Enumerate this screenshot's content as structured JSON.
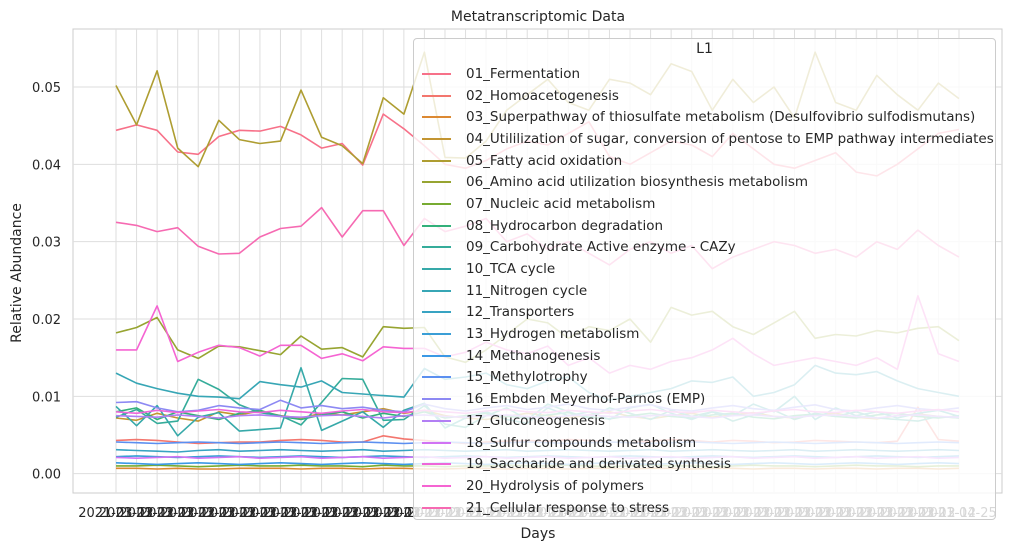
{
  "chart_data": {
    "type": "line",
    "title": "Metatranscriptomic Data",
    "xlabel": "Days",
    "ylabel": "Relative Abundance",
    "ylim": [
      -0.0025,
      0.0575
    ],
    "yticks": [
      "0.00",
      "0.01",
      "0.02",
      "0.03",
      "0.04",
      "0.05"
    ],
    "ytick_values": [
      0.0,
      0.01,
      0.02,
      0.03,
      0.04,
      0.05
    ],
    "grid": true,
    "legend_title": "L1",
    "legend_position": "upper-right",
    "x_tick_text": "2021-03-12",
    "last_x_tick_text": "2021-04-25",
    "x_count": 42,
    "series": [
      {
        "name": "01_Fermentation",
        "color": "#f77189",
        "values": [
          0.0444,
          0.0451,
          0.0444,
          0.0416,
          0.0413,
          0.0436,
          0.0444,
          0.0443,
          0.0449,
          0.0438,
          0.0421,
          0.0427,
          0.0399,
          0.0465,
          0.0446,
          0.0424,
          0.04,
          0.0395,
          0.0405,
          0.042,
          0.043,
          0.0425,
          0.044,
          0.0455,
          0.041,
          0.04,
          0.0415,
          0.043,
          0.0425,
          0.041,
          0.044,
          0.042,
          0.04,
          0.0395,
          0.0405,
          0.0415,
          0.039,
          0.0385,
          0.04,
          0.042,
          0.044,
          0.0445
        ]
      },
      {
        "name": "02_Homoacetogenesis",
        "color": "#f3766e",
        "values": [
          0.0043,
          0.0044,
          0.0043,
          0.0041,
          0.0039,
          0.004,
          0.0041,
          0.0041,
          0.0043,
          0.0044,
          0.0043,
          0.0041,
          0.0041,
          0.0049,
          0.0045,
          0.0043,
          0.0041,
          0.0039,
          0.0041,
          0.0042,
          0.0043,
          0.0042,
          0.0044,
          0.0043,
          0.0041,
          0.004,
          0.0042,
          0.0044,
          0.0043,
          0.0041,
          0.0043,
          0.0042,
          0.004,
          0.0041,
          0.0043,
          0.0042,
          0.0041,
          0.004,
          0.0042,
          0.0086,
          0.0044,
          0.0042
        ]
      },
      {
        "name": "03_Superpathway of thiosulfate metabolism (Desulfovibrio sulfodismutans)",
        "color": "#dc8932",
        "values": [
          0.0007,
          0.0007,
          0.0006,
          0.0007,
          0.0006,
          0.0006,
          0.0007,
          0.0007,
          0.0007,
          0.0006,
          0.0007,
          0.0007,
          0.0006,
          0.0007,
          0.0007,
          0.0006,
          0.0006,
          0.0007,
          0.0007,
          0.0006,
          0.0007,
          0.0007,
          0.0006,
          0.0007,
          0.0007,
          0.0006,
          0.0007,
          0.0007,
          0.0006,
          0.0007,
          0.0007,
          0.0006,
          0.0007,
          0.0007,
          0.0006,
          0.0007,
          0.0007,
          0.0006,
          0.0007,
          0.0007,
          0.0006,
          0.0007
        ]
      },
      {
        "name": "04_Utililization of sugar, conversion of pentose to EMP pathway intermediates",
        "color": "#c39532",
        "values": [
          0.0072,
          0.0069,
          0.0078,
          0.0072,
          0.0068,
          0.008,
          0.0076,
          0.0081,
          0.0075,
          0.0072,
          0.0078,
          0.0076,
          0.008,
          0.0084,
          0.0078,
          0.0082,
          0.0075,
          0.0072,
          0.007,
          0.0074,
          0.0078,
          0.0075,
          0.0072,
          0.0076,
          0.008,
          0.0074,
          0.0071,
          0.0075,
          0.0078,
          0.0073,
          0.0076,
          0.0079,
          0.0074,
          0.0072,
          0.0076,
          0.0078,
          0.0073,
          0.0071,
          0.0075,
          0.0077,
          0.0074,
          0.0072
        ]
      },
      {
        "name": "05_Fatty acid oxidation",
        "color": "#ae9d31",
        "values": [
          0.0502,
          0.0451,
          0.0521,
          0.0421,
          0.0397,
          0.0457,
          0.0432,
          0.0427,
          0.043,
          0.0496,
          0.0435,
          0.0424,
          0.0401,
          0.0486,
          0.0465,
          0.0545,
          0.0409,
          0.0408,
          0.043,
          0.047,
          0.049,
          0.051,
          0.048,
          0.047,
          0.051,
          0.0505,
          0.049,
          0.053,
          0.052,
          0.047,
          0.051,
          0.048,
          0.05,
          0.046,
          0.0545,
          0.048,
          0.047,
          0.0515,
          0.049,
          0.047,
          0.0505,
          0.0485
        ]
      },
      {
        "name": "06_Amino acid utilization biosynthesis metabolism",
        "color": "#97a431",
        "values": [
          0.0182,
          0.0189,
          0.0202,
          0.016,
          0.0149,
          0.0165,
          0.0164,
          0.0159,
          0.0154,
          0.0178,
          0.0161,
          0.0163,
          0.0151,
          0.019,
          0.0188,
          0.0189,
          0.0151,
          0.0144,
          0.016,
          0.018,
          0.02,
          0.0195,
          0.0175,
          0.019,
          0.0185,
          0.02,
          0.017,
          0.0215,
          0.0205,
          0.021,
          0.019,
          0.018,
          0.0195,
          0.021,
          0.0175,
          0.018,
          0.0178,
          0.0185,
          0.0182,
          0.0188,
          0.019,
          0.0172
        ]
      },
      {
        "name": "07_Nucleic acid metabolism",
        "color": "#77ab31",
        "values": [
          0.001,
          0.001,
          0.0011,
          0.001,
          0.0009,
          0.001,
          0.0011,
          0.001,
          0.001,
          0.0011,
          0.001,
          0.001,
          0.0009,
          0.0011,
          0.001,
          0.001,
          0.0009,
          0.001,
          0.001,
          0.0011,
          0.001,
          0.001,
          0.0011,
          0.001,
          0.0009,
          0.001,
          0.0011,
          0.001,
          0.001,
          0.0009,
          0.001,
          0.0011,
          0.001,
          0.001,
          0.0009,
          0.001,
          0.0011,
          0.001,
          0.001,
          0.0009,
          0.001,
          0.001
        ]
      },
      {
        "name": "08_Hydrocarbon degradation",
        "color": "#33b07a",
        "values": [
          0.008,
          0.0085,
          0.007,
          0.008,
          0.0075,
          0.007,
          0.0078,
          0.0082,
          0.0074,
          0.007,
          0.0076,
          0.008,
          0.0072,
          0.0078,
          0.0074,
          0.008,
          0.0072,
          0.0075,
          0.0078,
          0.0074,
          0.0072,
          0.0076,
          0.0079,
          0.0073,
          0.0071,
          0.0075,
          0.0078,
          0.0074,
          0.0072,
          0.0076,
          0.0078,
          0.0073,
          0.0071,
          0.0075,
          0.0077,
          0.0074,
          0.0072,
          0.0076,
          0.0078,
          0.0074,
          0.0072,
          0.0075
        ]
      },
      {
        "name": "09_Carbohydrate Active enzyme - CAZy",
        "color": "#35ac9a",
        "values": [
          0.0073,
          0.0083,
          0.0065,
          0.0068,
          0.0122,
          0.0109,
          0.0089,
          0.0079,
          0.0075,
          0.0063,
          0.0092,
          0.0123,
          0.0122,
          0.0069,
          0.007,
          0.0088,
          0.0064,
          0.006,
          0.0075,
          0.0085,
          0.007,
          0.009,
          0.008,
          0.0072,
          0.0085,
          0.0078,
          0.007,
          0.0082,
          0.0074,
          0.008,
          0.0068,
          0.0076,
          0.0082,
          0.007,
          0.0078,
          0.0074,
          0.008,
          0.0072,
          0.007,
          0.0068,
          0.0074,
          0.0072
        ]
      },
      {
        "name": "10_TCA cycle",
        "color": "#36a9a9",
        "values": [
          0.0087,
          0.0062,
          0.0088,
          0.0049,
          0.0073,
          0.0079,
          0.0055,
          0.0057,
          0.0059,
          0.0137,
          0.0056,
          0.0068,
          0.008,
          0.006,
          0.0082,
          0.0091,
          0.0059,
          0.0072,
          0.008,
          0.007,
          0.0065,
          0.0085,
          0.0075,
          0.008,
          0.007,
          0.0085,
          0.009,
          0.0078,
          0.007,
          0.008,
          0.0075,
          0.009,
          0.008,
          0.01,
          0.007,
          0.0085,
          0.0075,
          0.008,
          0.0072,
          0.0078,
          0.0082,
          0.0074
        ]
      },
      {
        "name": "11_Nitrogen cycle",
        "color": "#37a6b5",
        "values": [
          0.013,
          0.0117,
          0.011,
          0.0104,
          0.01,
          0.0099,
          0.0097,
          0.0119,
          0.0115,
          0.0112,
          0.012,
          0.0105,
          0.0103,
          0.0101,
          0.0099,
          0.0136,
          0.0122,
          0.0125,
          0.013,
          0.0115,
          0.011,
          0.012,
          0.0125,
          0.0105,
          0.0095,
          0.01,
          0.0105,
          0.011,
          0.012,
          0.0118,
          0.0125,
          0.01,
          0.0105,
          0.0115,
          0.014,
          0.013,
          0.0128,
          0.0132,
          0.012,
          0.011,
          0.0105,
          0.01
        ]
      },
      {
        "name": "12_Transporters",
        "color": "#38a3c2",
        "values": [
          0.0031,
          0.003,
          0.0029,
          0.0028,
          0.003,
          0.0031,
          0.0029,
          0.003,
          0.0031,
          0.003,
          0.0029,
          0.003,
          0.0031,
          0.0029,
          0.003,
          0.0031,
          0.003,
          0.0029,
          0.003,
          0.0031,
          0.0029,
          0.003,
          0.0031,
          0.003,
          0.0029,
          0.003,
          0.0031,
          0.0029,
          0.003,
          0.0031,
          0.003,
          0.0029,
          0.003,
          0.0031,
          0.0029,
          0.003,
          0.0031,
          0.003,
          0.0029,
          0.003,
          0.0031,
          0.003
        ]
      },
      {
        "name": "13_Hydrogen metabolism",
        "color": "#3a9ed6",
        "values": [
          0.0022,
          0.0023,
          0.0022,
          0.0021,
          0.0022,
          0.0023,
          0.0022,
          0.0021,
          0.0022,
          0.0023,
          0.0022,
          0.0021,
          0.0022,
          0.0023,
          0.0022,
          0.0021,
          0.0022,
          0.0023,
          0.0022,
          0.0021,
          0.0022,
          0.0023,
          0.0022,
          0.0021,
          0.0022,
          0.0023,
          0.0022,
          0.0021,
          0.0022,
          0.0023,
          0.0022,
          0.0021,
          0.0022,
          0.0023,
          0.0022,
          0.0021,
          0.0022,
          0.0023,
          0.0022,
          0.0021,
          0.0022,
          0.0023
        ]
      },
      {
        "name": "14_Methanogenesis",
        "color": "#3b99e5",
        "values": [
          0.0014,
          0.0013,
          0.0012,
          0.0013,
          0.0014,
          0.0013,
          0.0012,
          0.0013,
          0.0014,
          0.0013,
          0.0012,
          0.0013,
          0.0014,
          0.0013,
          0.0012,
          0.0013,
          0.0014,
          0.0013,
          0.0012,
          0.0013,
          0.0014,
          0.0013,
          0.0012,
          0.0013,
          0.0014,
          0.0013,
          0.0012,
          0.0013,
          0.0014,
          0.0013,
          0.0012,
          0.0013,
          0.0014,
          0.0013,
          0.0012,
          0.0013,
          0.0014,
          0.0013,
          0.0012,
          0.0013,
          0.0014,
          0.0013
        ]
      },
      {
        "name": "15_Methylotrophy",
        "color": "#5b8ff0",
        "values": [
          0.0041,
          0.004,
          0.0039,
          0.004,
          0.0041,
          0.004,
          0.0039,
          0.004,
          0.0041,
          0.004,
          0.0039,
          0.004,
          0.0041,
          0.004,
          0.0039,
          0.004,
          0.0041,
          0.004,
          0.0039,
          0.004,
          0.0041,
          0.004,
          0.0039,
          0.004,
          0.0041,
          0.004,
          0.0039,
          0.004,
          0.0041,
          0.004,
          0.0039,
          0.004,
          0.0041,
          0.004,
          0.0039,
          0.004,
          0.0041,
          0.004,
          0.0039,
          0.004,
          0.0041,
          0.004
        ]
      },
      {
        "name": "16_Embden Meyerhof-Parnos (EMP)",
        "color": "#8d89f3",
        "values": [
          0.0092,
          0.0093,
          0.0085,
          0.008,
          0.0082,
          0.0088,
          0.0085,
          0.0083,
          0.0095,
          0.0085,
          0.0088,
          0.0084,
          0.0086,
          0.0082,
          0.008,
          0.009,
          0.0084,
          0.0081,
          0.0085,
          0.0088,
          0.0083,
          0.0086,
          0.009,
          0.0084,
          0.0082,
          0.0086,
          0.0089,
          0.0083,
          0.0081,
          0.0085,
          0.0088,
          0.0084,
          0.0082,
          0.0086,
          0.0089,
          0.0083,
          0.0081,
          0.0085,
          0.0088,
          0.0084,
          0.0082,
          0.0085
        ]
      },
      {
        "name": "17_Gluconeogenesis",
        "color": "#b27ff4",
        "values": [
          0.0075,
          0.0074,
          0.0073,
          0.0076,
          0.0074,
          0.0072,
          0.0075,
          0.0076,
          0.0074,
          0.0073,
          0.0075,
          0.0076,
          0.0074,
          0.0072,
          0.0075,
          0.0076,
          0.0074,
          0.0073,
          0.0075,
          0.0076,
          0.0074,
          0.0072,
          0.0075,
          0.0076,
          0.0074,
          0.0073,
          0.0075,
          0.0076,
          0.0074,
          0.0072,
          0.0075,
          0.0076,
          0.0074,
          0.0073,
          0.0075,
          0.0076,
          0.0074,
          0.0072,
          0.0075,
          0.0076,
          0.0074,
          0.0073
        ]
      },
      {
        "name": "18_Sulfur compounds metabolism",
        "color": "#d173f4",
        "values": [
          0.0021,
          0.002,
          0.0021,
          0.0022,
          0.002,
          0.0021,
          0.0022,
          0.002,
          0.0021,
          0.0022,
          0.002,
          0.0021,
          0.0022,
          0.002,
          0.0021,
          0.0022,
          0.002,
          0.0021,
          0.0022,
          0.002,
          0.0021,
          0.0022,
          0.002,
          0.0021,
          0.0022,
          0.002,
          0.0021,
          0.0022,
          0.002,
          0.0021,
          0.0022,
          0.002,
          0.0021,
          0.0022,
          0.002,
          0.0021,
          0.0022,
          0.002,
          0.0021,
          0.0022,
          0.002,
          0.0021
        ]
      },
      {
        "name": "19_Saccharide and derivated synthesis",
        "color": "#ee67d9",
        "values": [
          0.008,
          0.0078,
          0.0082,
          0.0079,
          0.0081,
          0.0083,
          0.008,
          0.0079,
          0.0082,
          0.008,
          0.0078,
          0.0081,
          0.0083,
          0.008,
          0.0079,
          0.0082,
          0.008,
          0.0078,
          0.0081,
          0.0083,
          0.008,
          0.0079,
          0.0082,
          0.008,
          0.0078,
          0.0081,
          0.0083,
          0.008,
          0.0079,
          0.0082,
          0.008,
          0.0078,
          0.0081,
          0.0083,
          0.008,
          0.0079,
          0.0082,
          0.008,
          0.0078,
          0.0081,
          0.0083,
          0.008
        ]
      },
      {
        "name": "20_Hydrolysis of polymers",
        "color": "#f564d2",
        "values": [
          0.016,
          0.016,
          0.0217,
          0.0145,
          0.0157,
          0.0166,
          0.0163,
          0.0152,
          0.0166,
          0.0166,
          0.0149,
          0.0155,
          0.0146,
          0.0164,
          0.0162,
          0.0162,
          0.0151,
          0.0157,
          0.017,
          0.016,
          0.0155,
          0.0165,
          0.014,
          0.015,
          0.013,
          0.014,
          0.0135,
          0.0145,
          0.015,
          0.016,
          0.0175,
          0.0155,
          0.014,
          0.0145,
          0.015,
          0.0145,
          0.014,
          0.015,
          0.0135,
          0.023,
          0.0155,
          0.0145
        ]
      },
      {
        "name": "21_Cellular response to stress",
        "color": "#f66ab2",
        "values": [
          0.0325,
          0.0321,
          0.0313,
          0.0318,
          0.0294,
          0.0284,
          0.0285,
          0.0306,
          0.0317,
          0.032,
          0.0344,
          0.0306,
          0.034,
          0.034,
          0.0295,
          0.033,
          0.0313,
          0.032,
          0.033,
          0.03,
          0.031,
          0.029,
          0.03,
          0.0285,
          0.027,
          0.029,
          0.03,
          0.0285,
          0.0295,
          0.0265,
          0.028,
          0.029,
          0.03,
          0.0295,
          0.0285,
          0.029,
          0.028,
          0.03,
          0.029,
          0.0315,
          0.0295,
          0.028
        ]
      }
    ]
  }
}
